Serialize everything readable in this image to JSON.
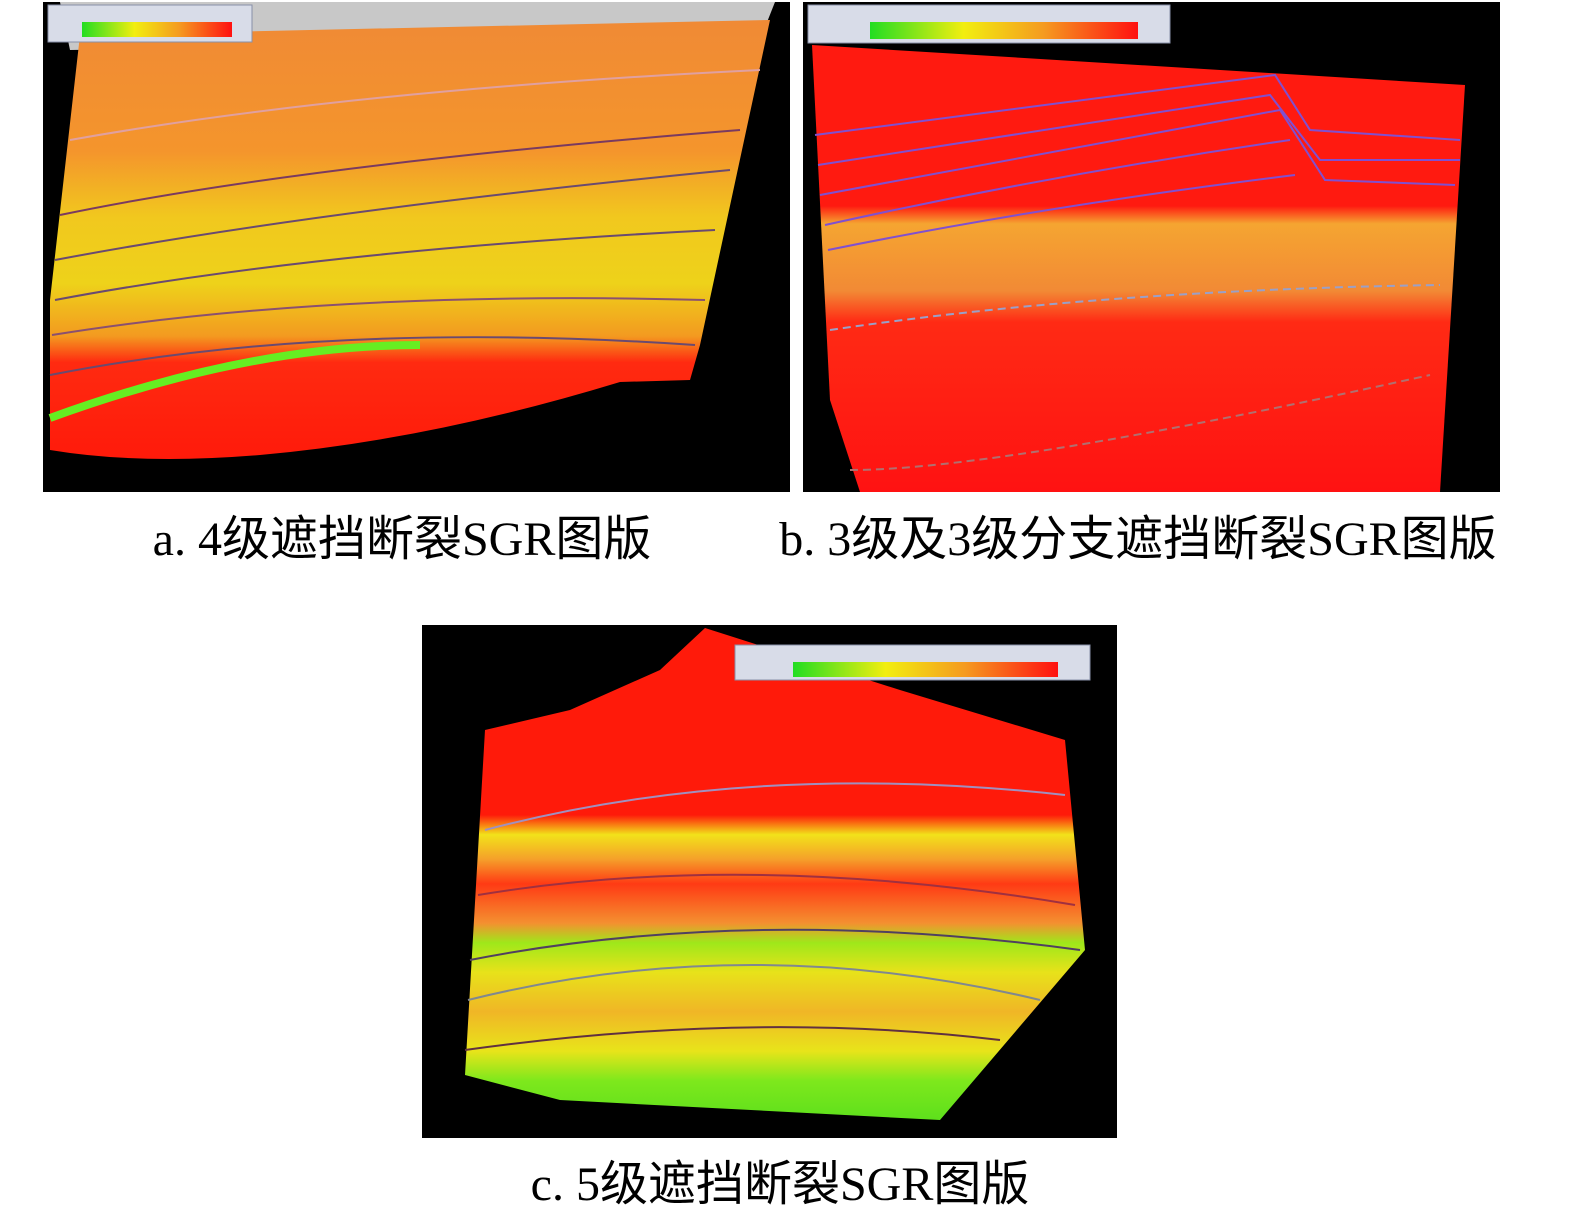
{
  "panels": [
    {
      "caption": "a. 4级遮挡断裂SGR图版"
    },
    {
      "caption": "b. 3级及3级分支遮挡断裂SGR图版"
    },
    {
      "caption": "c. 5级遮挡断裂SGR图版"
    }
  ]
}
